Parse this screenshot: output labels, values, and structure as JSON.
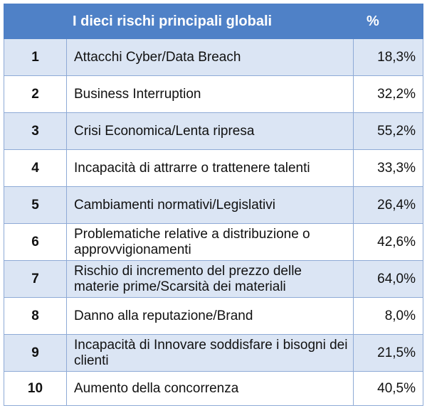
{
  "table": {
    "header": {
      "rank": "",
      "name": "I dieci rischi principali globali",
      "pct": "%"
    },
    "rows": [
      {
        "rank": "1",
        "name": "Attacchi Cyber/Data Breach",
        "pct": "18,3%"
      },
      {
        "rank": "2",
        "name": "Business Interruption",
        "pct": "32,2%"
      },
      {
        "rank": "3",
        "name": "Crisi Economica/Lenta ripresa",
        "pct": "55,2%"
      },
      {
        "rank": "4",
        "name": "Incapacità di attrarre o trattenere talenti",
        "pct": "33,3%"
      },
      {
        "rank": "5",
        "name": "Cambiamenti normativi/Legislativi",
        "pct": "26,4%"
      },
      {
        "rank": "6",
        "name": "Problematiche relative a distribuzione o approvvigionamenti",
        "pct": "42,6%"
      },
      {
        "rank": "7",
        "name": "Rischio di incremento del prezzo delle materie prime/Scarsità dei materiali",
        "pct": "64,0%"
      },
      {
        "rank": "8",
        "name": "Danno alla reputazione/Brand",
        "pct": "8,0%"
      },
      {
        "rank": "9",
        "name": "Incapacità di Innovare soddisfare i bisogni dei clienti",
        "pct": "21,5%"
      },
      {
        "rank": "10",
        "name": "Aumento della concorrenza",
        "pct": "40,5%"
      }
    ]
  },
  "colors": {
    "header_bg": "#4f81c7",
    "row_alt_bg": "#dbe5f4",
    "border": "#8eaad6"
  }
}
